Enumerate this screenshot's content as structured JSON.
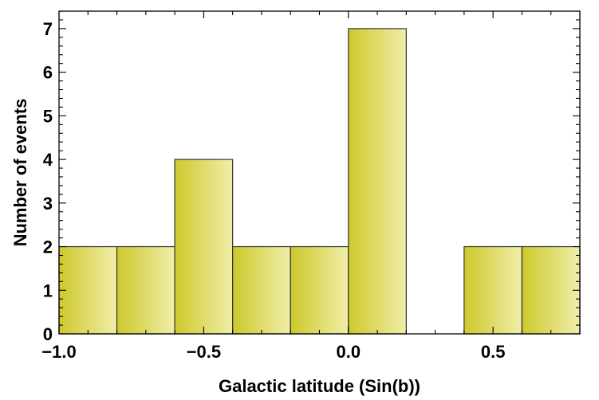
{
  "chart_data": {
    "type": "bar",
    "subtype": "histogram",
    "title": "",
    "xlabel": "Galactic latitude (Sin(b))",
    "ylabel": "Number of events",
    "bins": [
      {
        "start": -1.0,
        "end": -0.8,
        "count": 2
      },
      {
        "start": -0.8,
        "end": -0.6,
        "count": 2
      },
      {
        "start": -0.6,
        "end": -0.4,
        "count": 4
      },
      {
        "start": -0.4,
        "end": -0.2,
        "count": 2
      },
      {
        "start": -0.2,
        "end": 0.0,
        "count": 2
      },
      {
        "start": 0.0,
        "end": 0.2,
        "count": 7
      },
      {
        "start": 0.2,
        "end": 0.4,
        "count": 0
      },
      {
        "start": 0.4,
        "end": 0.6,
        "count": 2
      },
      {
        "start": 0.6,
        "end": 0.8,
        "count": 2
      }
    ],
    "xlim": [
      -1.0,
      0.8
    ],
    "ylim": [
      0,
      7.4
    ],
    "xticks": [
      {
        "value": -1.0,
        "label": "−1.0"
      },
      {
        "value": -0.5,
        "label": "−0.5"
      },
      {
        "value": 0.0,
        "label": "0.0"
      },
      {
        "value": 0.5,
        "label": "0.5"
      }
    ],
    "yticks": [
      {
        "value": 0,
        "label": "0"
      },
      {
        "value": 1,
        "label": "1"
      },
      {
        "value": 2,
        "label": "2"
      },
      {
        "value": 3,
        "label": "3"
      },
      {
        "value": 4,
        "label": "4"
      },
      {
        "value": 5,
        "label": "5"
      },
      {
        "value": 6,
        "label": "6"
      },
      {
        "value": 7,
        "label": "7"
      }
    ],
    "colors": {
      "bar_dark": "#cdc92b",
      "bar_light": "#f0eeaa",
      "bar_edge": "#333333",
      "frame": "#000000"
    },
    "grid": false,
    "legend": "none"
  }
}
